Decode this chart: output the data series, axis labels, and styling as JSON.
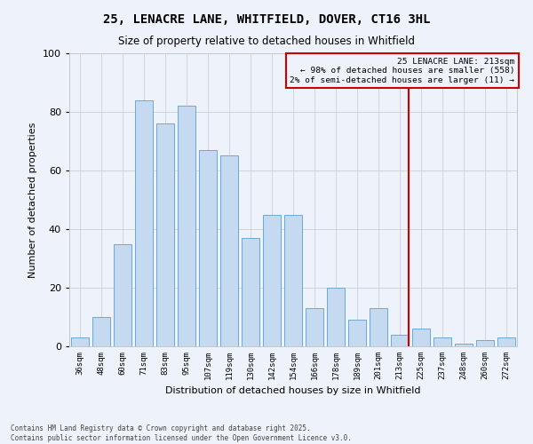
{
  "title": "25, LENACRE LANE, WHITFIELD, DOVER, CT16 3HL",
  "subtitle": "Size of property relative to detached houses in Whitfield",
  "xlabel": "Distribution of detached houses by size in Whitfield",
  "ylabel": "Number of detached properties",
  "bin_labels": [
    "36sqm",
    "48sqm",
    "60sqm",
    "71sqm",
    "83sqm",
    "95sqm",
    "107sqm",
    "119sqm",
    "130sqm",
    "142sqm",
    "154sqm",
    "166sqm",
    "178sqm",
    "189sqm",
    "201sqm",
    "213sqm",
    "225sqm",
    "237sqm",
    "248sqm",
    "260sqm",
    "272sqm"
  ],
  "bar_values": [
    3,
    10,
    35,
    84,
    76,
    82,
    67,
    65,
    37,
    45,
    45,
    13,
    20,
    9,
    13,
    4,
    6,
    3,
    1,
    2,
    3
  ],
  "bar_color": "#c5d9f0",
  "bar_edgecolor": "#6aaad4",
  "marker_label_line1": "25 LENACRE LANE: 213sqm",
  "marker_label_line2": "← 98% of detached houses are smaller (558)",
  "marker_label_line3": "2% of semi-detached houses are larger (11) →",
  "marker_color": "#cc0000",
  "ylim": [
    0,
    100
  ],
  "yticks": [
    0,
    20,
    40,
    60,
    80,
    100
  ],
  "footer_line1": "Contains HM Land Registry data © Crown copyright and database right 2025.",
  "footer_line2": "Contains public sector information licensed under the Open Government Licence v3.0.",
  "bg_color": "#eef2fa",
  "grid_color": "#c8c8c8"
}
